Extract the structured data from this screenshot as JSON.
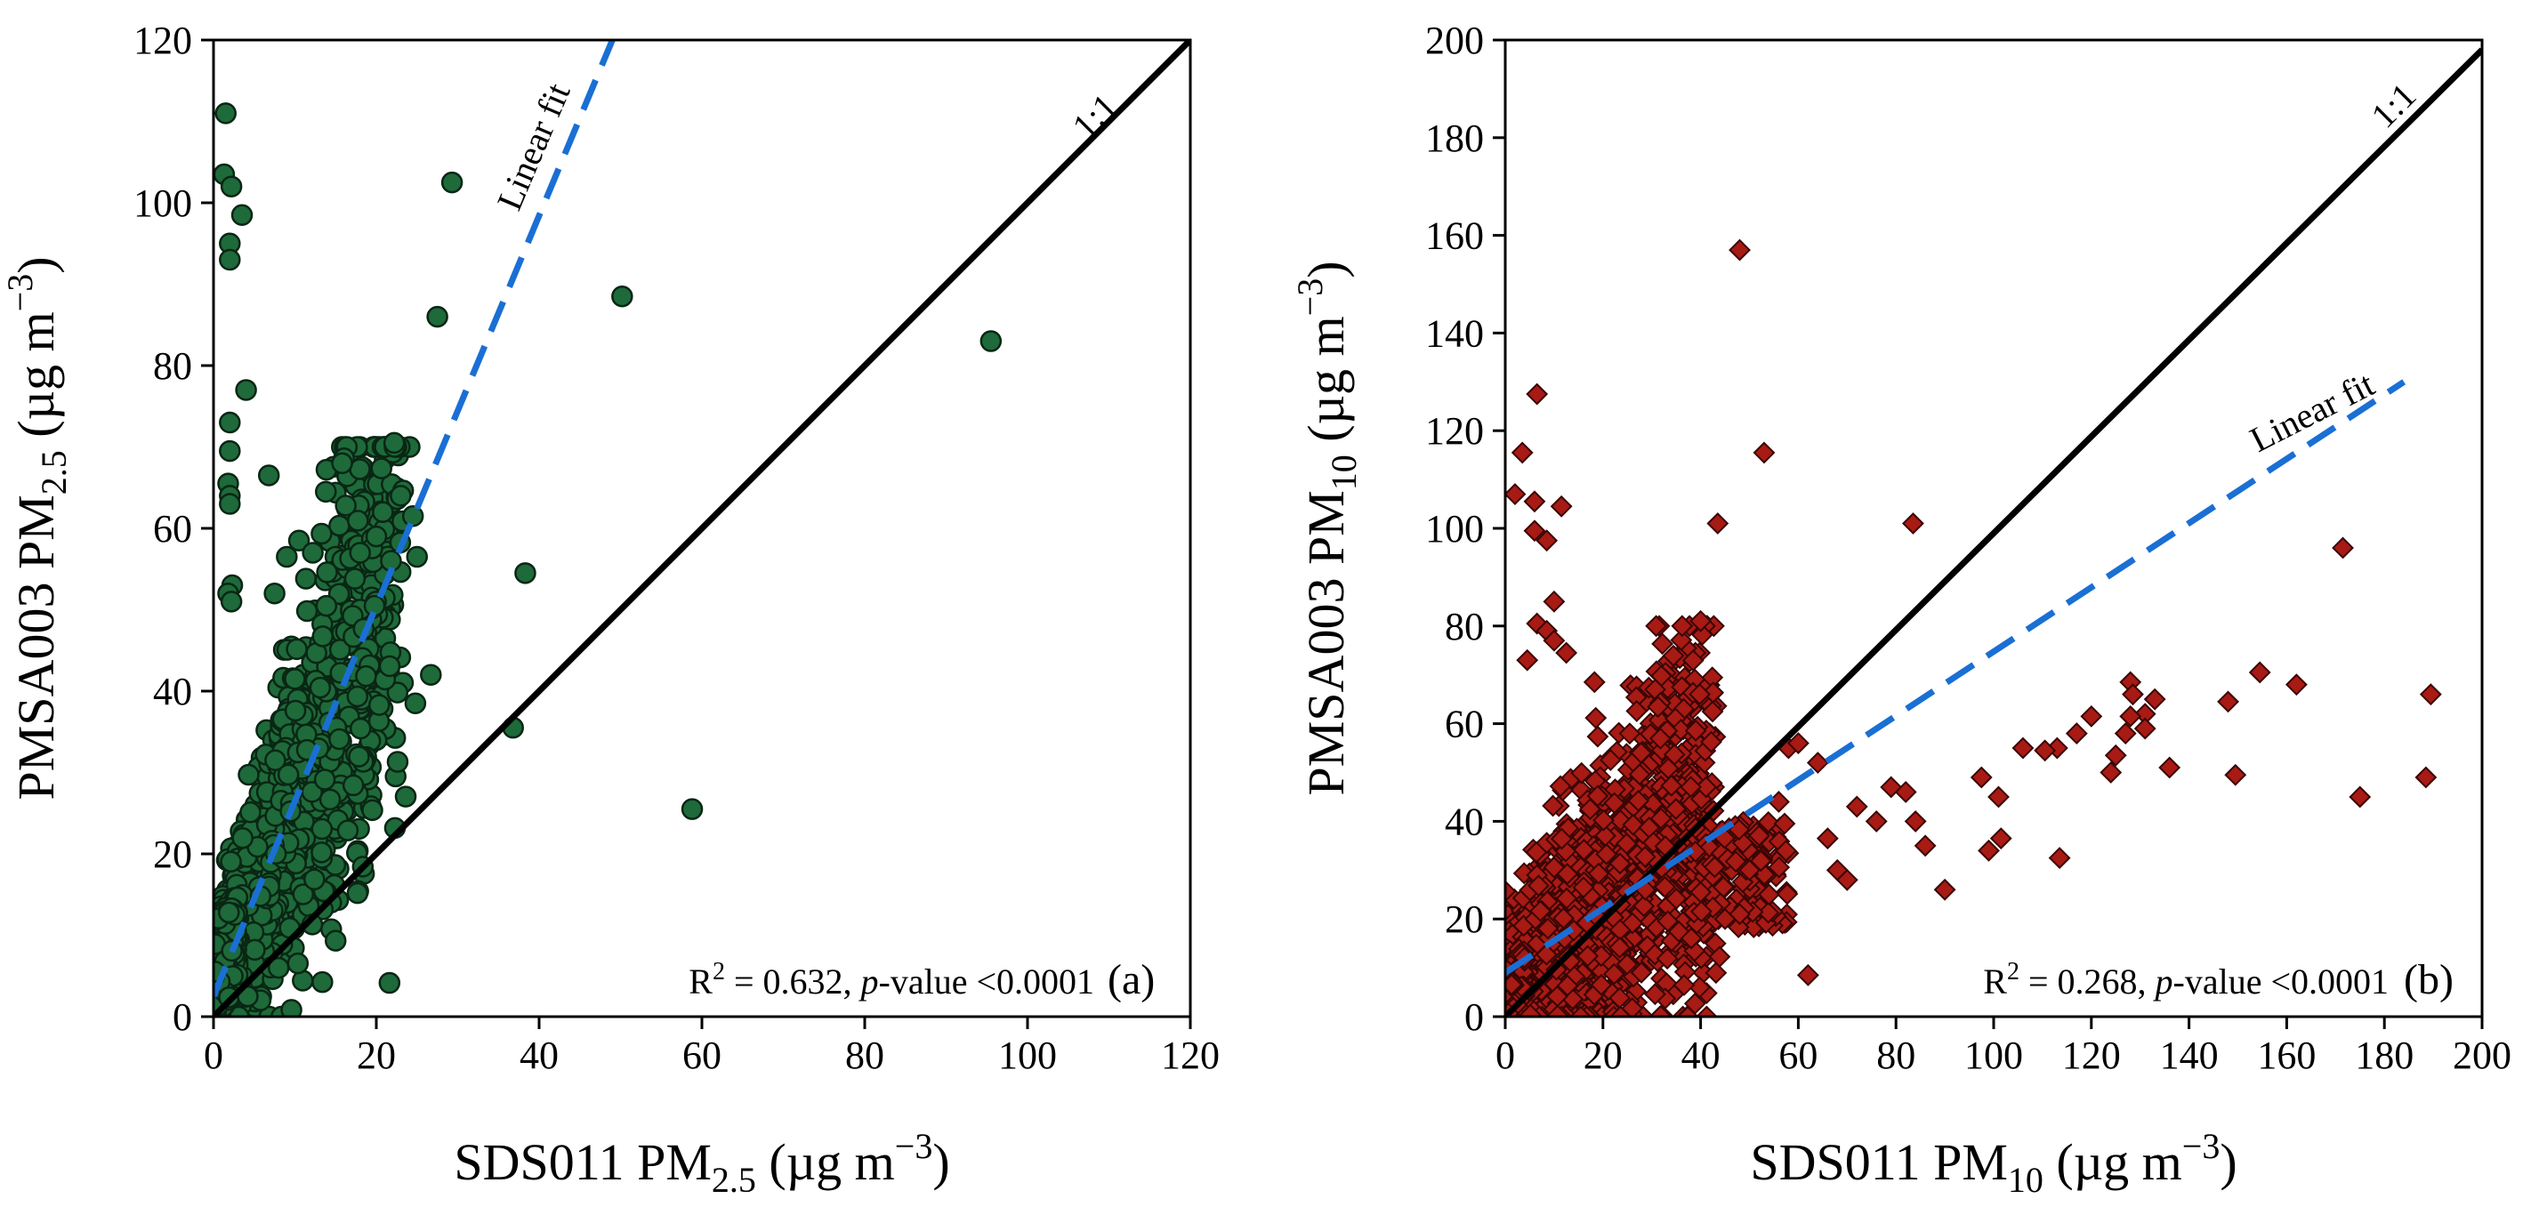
{
  "chart_data": [
    {
      "type": "scatter",
      "panel": "(a)",
      "xlabel": {
        "main": "SDS011 PM",
        "sub": "2.5",
        "units": " (µg m",
        "sup": "−3",
        "close": ")"
      },
      "ylabel": {
        "main": "PMSA003 PM",
        "sub": "2.5",
        "units": " (µg m",
        "sup": "−3",
        "close": ")"
      },
      "xlim": [
        0,
        120
      ],
      "ylim": [
        0,
        120
      ],
      "xticks": [
        0,
        20,
        40,
        60,
        80,
        100,
        120
      ],
      "yticks": [
        0,
        20,
        40,
        60,
        80,
        100,
        120
      ],
      "marker": {
        "shape": "circle",
        "fill": "#1e6a3a",
        "stroke": "#0a2614"
      },
      "stats": {
        "r2_prefix": "R",
        "r2_sup": "2",
        "r2_value": " = 0.632, ",
        "p_italic": "p",
        "p_rest": "-value <0.0001"
      },
      "one_to_one": {
        "label": "1:1",
        "from": [
          0,
          0
        ],
        "to": [
          120,
          120
        ],
        "color": "#000000"
      },
      "linear_fit": {
        "label": "Linear fit",
        "from": [
          0,
          2.5
        ],
        "to": [
          49,
          120
        ],
        "color": "#1a6fd4"
      },
      "outliers": [
        [
          1.5,
          111
        ],
        [
          1.3,
          103.5
        ],
        [
          2.2,
          102
        ],
        [
          3.5,
          98.5
        ],
        [
          2.0,
          95
        ],
        [
          2.0,
          93
        ],
        [
          4.0,
          77
        ],
        [
          2.0,
          73
        ],
        [
          2.0,
          69.5
        ],
        [
          1.8,
          65.5
        ],
        [
          2.0,
          64
        ],
        [
          2.0,
          63
        ],
        [
          2.3,
          53
        ],
        [
          1.8,
          52
        ],
        [
          2.2,
          51
        ],
        [
          6.8,
          66.5
        ],
        [
          7.5,
          52
        ],
        [
          29.3,
          102.5
        ],
        [
          27.5,
          86
        ],
        [
          50.2,
          88.5
        ],
        [
          95.5,
          83
        ],
        [
          38.3,
          54.5
        ],
        [
          36.8,
          35.5
        ],
        [
          58.8,
          25.5
        ],
        [
          22.2,
          70.5
        ],
        [
          15.8,
          68
        ],
        [
          20.8,
          62
        ],
        [
          23.0,
          64
        ],
        [
          24.5,
          61.5
        ],
        [
          20.0,
          59
        ],
        [
          18.0,
          57
        ],
        [
          21.8,
          56
        ],
        [
          25.0,
          56.5
        ],
        [
          26.7,
          42
        ],
        [
          24.8,
          38.5
        ],
        [
          13.8,
          64.5
        ],
        [
          10.5,
          58.5
        ],
        [
          12.2,
          57
        ],
        [
          9.0,
          56.5
        ],
        [
          8.0,
          6
        ],
        [
          4.2,
          2.5
        ]
      ]
    },
    {
      "type": "scatter",
      "panel": "(b)",
      "xlabel": {
        "main": "SDS011 PM",
        "sub": "10",
        "units": " (µg m",
        "sup": "−3",
        "close": ")"
      },
      "ylabel": {
        "main": "PMSA003 PM",
        "sub": "10",
        "units": " (µg m",
        "sup": "−3",
        "close": ")"
      },
      "xlim": [
        0,
        200
      ],
      "ylim": [
        0,
        200
      ],
      "xticks": [
        0,
        20,
        40,
        60,
        80,
        100,
        120,
        140,
        160,
        180,
        200
      ],
      "yticks": [
        0,
        20,
        40,
        60,
        80,
        100,
        120,
        140,
        160,
        180,
        200
      ],
      "marker": {
        "shape": "diamond",
        "fill": "#a81a14",
        "stroke": "#3a0505"
      },
      "stats": {
        "r2_prefix": "R",
        "r2_sup": "2",
        "r2_value": " = 0.268, ",
        "p_italic": "p",
        "p_rest": "-value <0.0001"
      },
      "one_to_one": {
        "label": "1:1",
        "from": [
          0,
          0
        ],
        "to": [
          200,
          198
        ],
        "color": "#000000"
      },
      "linear_fit": {
        "label": "Linear fit",
        "from": [
          0,
          9
        ],
        "to": [
          184,
          130
        ],
        "color": "#1a6fd4"
      },
      "outliers": [
        [
          48,
          157
        ],
        [
          6.5,
          127.5
        ],
        [
          3.5,
          115.5
        ],
        [
          53,
          115.5
        ],
        [
          2.0,
          107
        ],
        [
          6.0,
          105.5
        ],
        [
          11.5,
          104.5
        ],
        [
          43.5,
          101
        ],
        [
          83.5,
          101
        ],
        [
          6.0,
          99.5
        ],
        [
          8.5,
          97.5
        ],
        [
          171.5,
          96
        ],
        [
          10.0,
          85
        ],
        [
          6.5,
          80.5
        ],
        [
          8.5,
          79
        ],
        [
          10.0,
          77
        ],
        [
          4.5,
          73
        ],
        [
          12.5,
          74.5
        ],
        [
          40,
          81
        ],
        [
          154.5,
          70.5
        ],
        [
          162,
          68
        ],
        [
          128,
          68.5
        ],
        [
          128.5,
          66
        ],
        [
          189.5,
          66
        ],
        [
          133,
          65
        ],
        [
          148,
          64.5
        ],
        [
          131,
          62
        ],
        [
          128,
          61.5
        ],
        [
          120,
          61.5
        ],
        [
          117,
          58
        ],
        [
          131,
          59
        ],
        [
          127,
          58
        ],
        [
          188.5,
          49
        ],
        [
          175,
          45
        ],
        [
          136,
          51
        ],
        [
          149.5,
          49.5
        ],
        [
          125,
          53.5
        ],
        [
          124,
          50
        ],
        [
          113,
          55
        ],
        [
          110.5,
          54.5
        ],
        [
          106,
          55
        ],
        [
          97.5,
          49
        ],
        [
          101,
          45
        ],
        [
          99,
          34
        ],
        [
          101.5,
          36.5
        ],
        [
          113.5,
          32.5
        ],
        [
          90,
          26
        ],
        [
          86,
          35
        ],
        [
          84,
          40
        ],
        [
          82,
          46
        ],
        [
          79,
          47
        ],
        [
          72,
          43
        ],
        [
          76,
          40
        ],
        [
          68,
          30
        ],
        [
          70,
          28
        ],
        [
          66,
          36.5
        ],
        [
          64,
          52
        ],
        [
          58,
          55
        ],
        [
          62,
          8.5
        ],
        [
          60,
          56
        ],
        [
          50,
          30
        ],
        [
          54,
          25
        ],
        [
          48,
          21
        ],
        [
          45,
          20
        ],
        [
          40,
          25.5
        ],
        [
          56,
          44
        ]
      ]
    }
  ]
}
